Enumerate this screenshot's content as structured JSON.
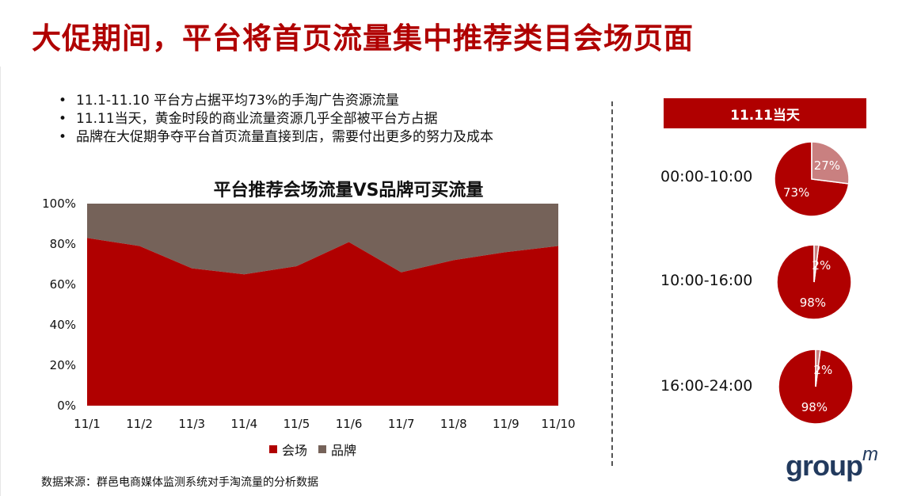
{
  "title": "大促期间，平台将首页流量集中推荐类目会场页面",
  "bullets": [
    "11.1-11.10 平台方占据平均73%的手淘广告资源流量",
    "11.11当天，黄金时段的商业流量资源几乎全部被平台方占据",
    "品牌在大促期争夺平台首页流量直接到店，需要付出更多的努力及成本"
  ],
  "source": "数据来源：群邑电商媒体监测系统对手淘流量的分析数据",
  "banner": "11.11当天",
  "logo": {
    "text": "group",
    "sup": "m"
  },
  "colors": {
    "accent": "#b00000",
    "brand": "#756259",
    "pie_light": "#c98080"
  },
  "chart_data": [
    {
      "type": "area",
      "stacked_percent": true,
      "title": "平台推荐会场流量VS品牌可买流量",
      "categories": [
        "11/1",
        "11/2",
        "11/3",
        "11/4",
        "11/5",
        "11/6",
        "11/7",
        "11/8",
        "11/9",
        "11/10"
      ],
      "series": [
        {
          "name": "会场",
          "color": "#b00000",
          "values": [
            83,
            79,
            68,
            65,
            69,
            81,
            66,
            72,
            76,
            79
          ]
        },
        {
          "name": "品牌",
          "color": "#756259",
          "values": [
            17,
            21,
            32,
            35,
            31,
            19,
            34,
            28,
            24,
            21
          ]
        }
      ],
      "ylim": [
        0,
        100
      ],
      "yticks": [
        "0%",
        "20%",
        "40%",
        "60%",
        "80%",
        "100%"
      ],
      "legend": "bottom"
    },
    {
      "type": "pie",
      "label": "00:00-10:00",
      "slices": [
        {
          "name": "会场",
          "value": 73,
          "label": "73%",
          "color": "#b00000"
        },
        {
          "name": "品牌",
          "value": 27,
          "label": "27%",
          "color": "#c98080"
        }
      ]
    },
    {
      "type": "pie",
      "label": "10:00-16:00",
      "slices": [
        {
          "name": "会场",
          "value": 98,
          "label": "98%",
          "color": "#b00000"
        },
        {
          "name": "品牌",
          "value": 2,
          "label": "2%",
          "color": "#c98080"
        }
      ]
    },
    {
      "type": "pie",
      "label": "16:00-24:00",
      "slices": [
        {
          "name": "会场",
          "value": 98,
          "label": "98%",
          "color": "#b00000"
        },
        {
          "name": "品牌",
          "value": 2,
          "label": "2%",
          "color": "#c98080"
        }
      ]
    }
  ]
}
